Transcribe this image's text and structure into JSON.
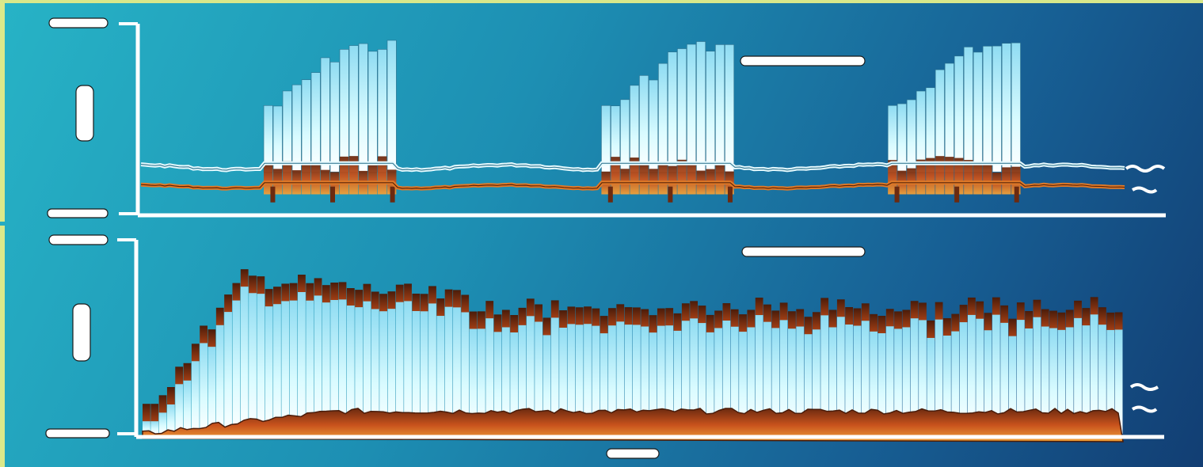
{
  "chart_data": [
    {
      "type": "area",
      "title": "",
      "xlabel": "",
      "ylabel": "",
      "note": "",
      "y_top_label": "",
      "y_bottom_label": "",
      "grid": false,
      "ylim": [
        0,
        100
      ],
      "bursts": [
        {
          "start": 0.12,
          "end": 0.25
        },
        {
          "start": 0.45,
          "end": 0.58
        },
        {
          "start": 0.73,
          "end": 0.86
        }
      ],
      "series": [
        {
          "color": "#bdf3ff",
          "baseline": 24,
          "peak": 90
        },
        {
          "color": "#c8521c",
          "baseline": 14,
          "peak": 30
        }
      ]
    },
    {
      "type": "area",
      "title": "",
      "xlabel": "",
      "ylabel": "",
      "note": "",
      "y_top_label": "",
      "y_bottom_label": "",
      "grid": false,
      "ylim": [
        0,
        100
      ],
      "series": [
        {
          "color": "#bdf3ff",
          "start": 10,
          "peak": 82,
          "sustain": 66
        },
        {
          "color": "#c8521c",
          "start": 0,
          "peak": 12,
          "sustain": 12
        }
      ]
    }
  ],
  "colors": {
    "background_start": "#27b3c6",
    "background_end": "#123e73",
    "axis": "#ffffff",
    "light_series": "#bdf3ff",
    "dark_series": "#c8521c"
  }
}
